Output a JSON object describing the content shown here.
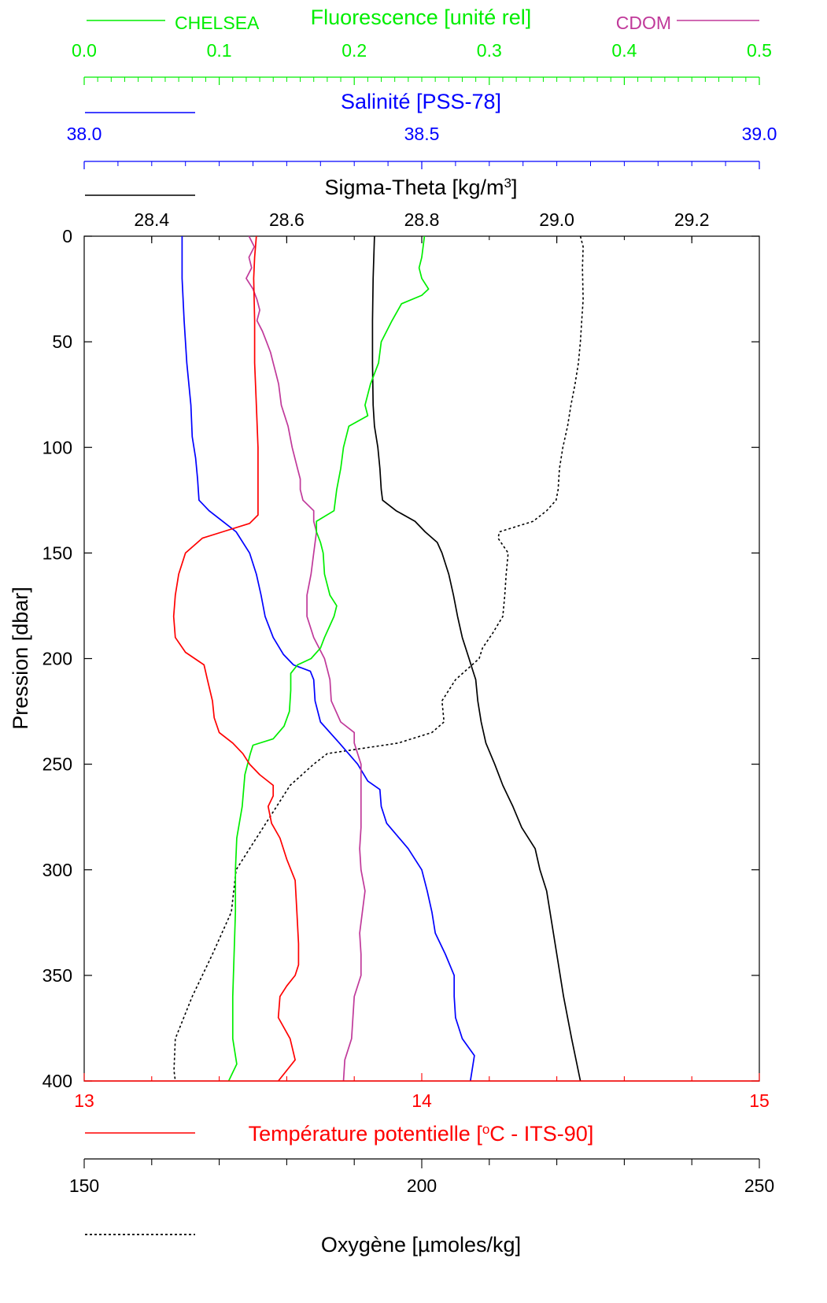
{
  "chart_data": {
    "type": "line",
    "y_axis": {
      "label": "Pression [dbar]",
      "range": [
        0,
        400
      ],
      "inverted": true,
      "ticks": [
        "0",
        "50",
        "100",
        "150",
        "200",
        "250",
        "300",
        "350",
        "400"
      ]
    },
    "axes": {
      "fluorescence": {
        "label": "Fluorescence [unité rel]",
        "range": [
          0,
          0.5
        ],
        "ticks": [
          "0.0",
          "0.1",
          "0.2",
          "0.3",
          "0.4",
          "0.5"
        ],
        "color": "#00ee00"
      },
      "salinity": {
        "label": "Salinité [PSS-78]",
        "range": [
          38.0,
          39.0
        ],
        "ticks": [
          "38.0",
          "38.5",
          "39.0"
        ],
        "color": "#0000ff"
      },
      "sigma_theta": {
        "label_main": "Sigma-Theta [kg/m",
        "label_sup": "3",
        "label_end": "]",
        "range": [
          28.3,
          29.3
        ],
        "ticks": [
          "28.4",
          "28.6",
          "28.8",
          "29.0",
          "29.2"
        ],
        "color": "#000000"
      },
      "temperature": {
        "label_pre": "Température potentielle [",
        "label_sup": "o",
        "label_post": "C - ITS-90]",
        "range": [
          13,
          15
        ],
        "ticks": [
          "13",
          "14",
          "15"
        ],
        "color": "#ff0000"
      },
      "oxygen": {
        "label": "Oxygène [µmoles/kg]",
        "range": [
          150,
          250
        ],
        "ticks": [
          "150",
          "200",
          "250"
        ],
        "color": "#000000"
      }
    },
    "legend": {
      "chelsea": "CHELSEA",
      "cdom": "CDOM"
    },
    "series": [
      {
        "name": "CHELSEA",
        "axis": "fluorescence",
        "color": "#00ee00",
        "points": [
          [
            0,
            0.252
          ],
          [
            10,
            0.25
          ],
          [
            15,
            0.248
          ],
          [
            20,
            0.25
          ],
          [
            25,
            0.255
          ],
          [
            28,
            0.25
          ],
          [
            32,
            0.235
          ],
          [
            40,
            0.228
          ],
          [
            50,
            0.22
          ],
          [
            60,
            0.218
          ],
          [
            70,
            0.212
          ],
          [
            80,
            0.208
          ],
          [
            85,
            0.21
          ],
          [
            90,
            0.196
          ],
          [
            100,
            0.192
          ],
          [
            110,
            0.19
          ],
          [
            120,
            0.187
          ],
          [
            130,
            0.185
          ],
          [
            135,
            0.172
          ],
          [
            140,
            0.172
          ],
          [
            145,
            0.175
          ],
          [
            150,
            0.177
          ],
          [
            160,
            0.178
          ],
          [
            170,
            0.182
          ],
          [
            175,
            0.187
          ],
          [
            180,
            0.185
          ],
          [
            190,
            0.178
          ],
          [
            195,
            0.175
          ],
          [
            200,
            0.168
          ],
          [
            203,
            0.158
          ],
          [
            207,
            0.153
          ],
          [
            215,
            0.153
          ],
          [
            225,
            0.152
          ],
          [
            232,
            0.148
          ],
          [
            238,
            0.14
          ],
          [
            241,
            0.125
          ],
          [
            245,
            0.123
          ],
          [
            255,
            0.119
          ],
          [
            270,
            0.117
          ],
          [
            285,
            0.113
          ],
          [
            300,
            0.112
          ],
          [
            320,
            0.112
          ],
          [
            340,
            0.111
          ],
          [
            360,
            0.11
          ],
          [
            380,
            0.11
          ],
          [
            392,
            0.113
          ],
          [
            400,
            0.107
          ]
        ]
      },
      {
        "name": "CDOM",
        "axis": "fluorescence",
        "color": "#c0399a",
        "points": [
          [
            0,
            0.122
          ],
          [
            5,
            0.126
          ],
          [
            10,
            0.122
          ],
          [
            15,
            0.124
          ],
          [
            20,
            0.12
          ],
          [
            25,
            0.125
          ],
          [
            30,
            0.128
          ],
          [
            35,
            0.13
          ],
          [
            40,
            0.128
          ],
          [
            45,
            0.132
          ],
          [
            50,
            0.135
          ],
          [
            55,
            0.138
          ],
          [
            60,
            0.14
          ],
          [
            65,
            0.142
          ],
          [
            70,
            0.144
          ],
          [
            80,
            0.146
          ],
          [
            90,
            0.151
          ],
          [
            100,
            0.154
          ],
          [
            110,
            0.158
          ],
          [
            115,
            0.16
          ],
          [
            120,
            0.16
          ],
          [
            125,
            0.162
          ],
          [
            130,
            0.17
          ],
          [
            135,
            0.17
          ],
          [
            140,
            0.172
          ],
          [
            150,
            0.17
          ],
          [
            160,
            0.168
          ],
          [
            170,
            0.165
          ],
          [
            180,
            0.165
          ],
          [
            190,
            0.17
          ],
          [
            200,
            0.178
          ],
          [
            205,
            0.18
          ],
          [
            210,
            0.182
          ],
          [
            220,
            0.183
          ],
          [
            230,
            0.19
          ],
          [
            235,
            0.2
          ],
          [
            240,
            0.2
          ],
          [
            250,
            0.205
          ],
          [
            260,
            0.205
          ],
          [
            270,
            0.205
          ],
          [
            280,
            0.205
          ],
          [
            290,
            0.204
          ],
          [
            300,
            0.205
          ],
          [
            310,
            0.208
          ],
          [
            320,
            0.206
          ],
          [
            330,
            0.204
          ],
          [
            340,
            0.205
          ],
          [
            350,
            0.205
          ],
          [
            360,
            0.2
          ],
          [
            370,
            0.199
          ],
          [
            380,
            0.198
          ],
          [
            390,
            0.193
          ],
          [
            400,
            0.192
          ]
        ]
      },
      {
        "name": "Salinité",
        "axis": "salinity",
        "color": "#0000ff",
        "points": [
          [
            0,
            38.145
          ],
          [
            20,
            38.145
          ],
          [
            40,
            38.148
          ],
          [
            60,
            38.152
          ],
          [
            80,
            38.158
          ],
          [
            95,
            38.16
          ],
          [
            105,
            38.165
          ],
          [
            115,
            38.168
          ],
          [
            125,
            38.17
          ],
          [
            130,
            38.185
          ],
          [
            135,
            38.205
          ],
          [
            140,
            38.225
          ],
          [
            150,
            38.245
          ],
          [
            160,
            38.255
          ],
          [
            170,
            38.262
          ],
          [
            180,
            38.268
          ],
          [
            190,
            38.28
          ],
          [
            198,
            38.295
          ],
          [
            203,
            38.31
          ],
          [
            206,
            38.335
          ],
          [
            210,
            38.34
          ],
          [
            220,
            38.342
          ],
          [
            230,
            38.35
          ],
          [
            240,
            38.378
          ],
          [
            250,
            38.405
          ],
          [
            258,
            38.42
          ],
          [
            262,
            38.438
          ],
          [
            270,
            38.44
          ],
          [
            278,
            38.448
          ],
          [
            290,
            38.48
          ],
          [
            300,
            38.5
          ],
          [
            310,
            38.508
          ],
          [
            320,
            38.515
          ],
          [
            330,
            38.52
          ],
          [
            340,
            38.535
          ],
          [
            350,
            38.548
          ],
          [
            360,
            38.548
          ],
          [
            370,
            38.55
          ],
          [
            380,
            38.56
          ],
          [
            388,
            38.578
          ],
          [
            400,
            38.572
          ]
        ]
      },
      {
        "name": "Sigma-Theta",
        "axis": "sigma_theta",
        "color": "#000000",
        "points": [
          [
            0,
            28.73
          ],
          [
            20,
            28.728
          ],
          [
            40,
            28.727
          ],
          [
            60,
            28.727
          ],
          [
            80,
            28.728
          ],
          [
            90,
            28.73
          ],
          [
            100,
            28.735
          ],
          [
            110,
            28.738
          ],
          [
            120,
            28.74
          ],
          [
            125,
            28.742
          ],
          [
            130,
            28.762
          ],
          [
            135,
            28.79
          ],
          [
            140,
            28.805
          ],
          [
            145,
            28.823
          ],
          [
            150,
            28.83
          ],
          [
            160,
            28.84
          ],
          [
            170,
            28.847
          ],
          [
            180,
            28.853
          ],
          [
            190,
            28.86
          ],
          [
            200,
            28.87
          ],
          [
            205,
            28.875
          ],
          [
            210,
            28.88
          ],
          [
            220,
            28.883
          ],
          [
            230,
            28.888
          ],
          [
            240,
            28.895
          ],
          [
            250,
            28.908
          ],
          [
            260,
            28.92
          ],
          [
            270,
            28.935
          ],
          [
            280,
            28.948
          ],
          [
            290,
            28.968
          ],
          [
            300,
            28.975
          ],
          [
            310,
            28.985
          ],
          [
            320,
            28.99
          ],
          [
            340,
            29.0
          ],
          [
            360,
            29.01
          ],
          [
            380,
            29.022
          ],
          [
            400,
            29.035
          ]
        ]
      },
      {
        "name": "Température potentielle",
        "axis": "temperature",
        "color": "#ff0000",
        "points": [
          [
            0,
            13.51
          ],
          [
            10,
            13.505
          ],
          [
            20,
            13.502
          ],
          [
            40,
            13.505
          ],
          [
            60,
            13.505
          ],
          [
            80,
            13.51
          ],
          [
            100,
            13.515
          ],
          [
            120,
            13.515
          ],
          [
            132,
            13.515
          ],
          [
            136,
            13.49
          ],
          [
            140,
            13.41
          ],
          [
            143,
            13.35
          ],
          [
            150,
            13.3
          ],
          [
            160,
            13.28
          ],
          [
            170,
            13.27
          ],
          [
            180,
            13.265
          ],
          [
            190,
            13.27
          ],
          [
            197,
            13.3
          ],
          [
            203,
            13.355
          ],
          [
            210,
            13.365
          ],
          [
            220,
            13.38
          ],
          [
            228,
            13.385
          ],
          [
            235,
            13.4
          ],
          [
            240,
            13.44
          ],
          [
            245,
            13.47
          ],
          [
            250,
            13.49
          ],
          [
            255,
            13.52
          ],
          [
            260,
            13.56
          ],
          [
            265,
            13.56
          ],
          [
            270,
            13.545
          ],
          [
            278,
            13.555
          ],
          [
            285,
            13.58
          ],
          [
            295,
            13.6
          ],
          [
            305,
            13.625
          ],
          [
            320,
            13.63
          ],
          [
            335,
            13.635
          ],
          [
            345,
            13.635
          ],
          [
            350,
            13.625
          ],
          [
            355,
            13.6
          ],
          [
            360,
            13.58
          ],
          [
            370,
            13.575
          ],
          [
            380,
            13.61
          ],
          [
            390,
            13.625
          ],
          [
            395,
            13.6
          ],
          [
            400,
            13.575
          ]
        ]
      },
      {
        "name": "Oxygène",
        "axis": "oxygen",
        "color": "#000000",
        "dashed": true,
        "points": [
          [
            0,
            223.5
          ],
          [
            5,
            223.9
          ],
          [
            15,
            223.8
          ],
          [
            30,
            223.9
          ],
          [
            40,
            223.7
          ],
          [
            50,
            223.5
          ],
          [
            60,
            223.2
          ],
          [
            70,
            222.7
          ],
          [
            80,
            222.1
          ],
          [
            90,
            221.6
          ],
          [
            100,
            220.9
          ],
          [
            110,
            220.4
          ],
          [
            120,
            220.2
          ],
          [
            125,
            219.9
          ],
          [
            130,
            218.5
          ],
          [
            135,
            216.5
          ],
          [
            140,
            211.5
          ],
          [
            143,
            211.3
          ],
          [
            150,
            212.8
          ],
          [
            160,
            212.5
          ],
          [
            170,
            212.3
          ],
          [
            180,
            212.0
          ],
          [
            188,
            210.5
          ],
          [
            195,
            209.0
          ],
          [
            200,
            208.5
          ],
          [
            210,
            205.0
          ],
          [
            220,
            203.0
          ],
          [
            230,
            203.3
          ],
          [
            235,
            201.5
          ],
          [
            240,
            196.5
          ],
          [
            245,
            186.0
          ],
          [
            250,
            184.0
          ],
          [
            260,
            180.5
          ],
          [
            275,
            177.5
          ],
          [
            290,
            174.5
          ],
          [
            300,
            172.5
          ],
          [
            320,
            171.8
          ],
          [
            340,
            169.0
          ],
          [
            360,
            166.0
          ],
          [
            380,
            163.5
          ],
          [
            395,
            163.3
          ],
          [
            400,
            163.5
          ]
        ]
      }
    ]
  }
}
